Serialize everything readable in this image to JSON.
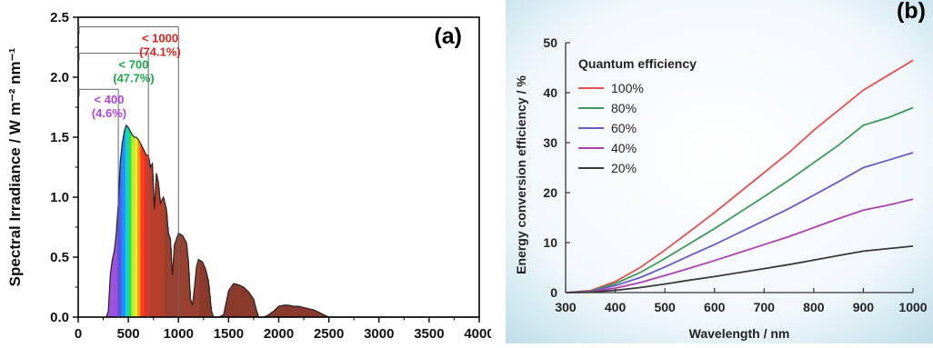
{
  "chart_data": [
    {
      "type": "area",
      "panel_label": "(a)",
      "ylabel": "Spectral Irradiance / W m⁻² nm⁻¹",
      "xlim": [
        0,
        4000
      ],
      "ylim": [
        0,
        2.5
      ],
      "x_ticks": [
        "0",
        "500",
        "1000",
        "1500",
        "2000",
        "2500",
        "3000",
        "3500",
        "4000"
      ],
      "y_ticks": [
        "0.0",
        "0.5",
        "1.0",
        "1.5",
        "2.0",
        "2.5"
      ],
      "series": [
        {
          "x": [
            280,
            300,
            320,
            340,
            360,
            380,
            400,
            420,
            440,
            460,
            480,
            500,
            520,
            540,
            560,
            580,
            600,
            620,
            650,
            680,
            700,
            720,
            740,
            760,
            780,
            800,
            820,
            850,
            880,
            900,
            920,
            940,
            960,
            980,
            1000,
            1040,
            1080,
            1100,
            1120,
            1140,
            1160,
            1180,
            1200,
            1240,
            1270,
            1300,
            1330,
            1350,
            1370,
            1400,
            1450,
            1500,
            1550,
            1600,
            1650,
            1700,
            1750,
            1780,
            1800,
            1850,
            1900,
            1950,
            2000,
            2050,
            2100,
            2150,
            2200,
            2250,
            2300,
            2350,
            2400,
            2450,
            2500,
            2600,
            2800,
            3000,
            3500,
            4000
          ],
          "y": [
            0.0,
            0.05,
            0.35,
            0.48,
            0.55,
            0.7,
            0.95,
            1.3,
            1.45,
            1.55,
            1.6,
            1.58,
            1.55,
            1.52,
            1.5,
            1.5,
            1.48,
            1.45,
            1.4,
            1.35,
            1.35,
            1.25,
            1.28,
            0.9,
            1.2,
            1.12,
            0.95,
            1.0,
            0.9,
            0.7,
            0.65,
            0.35,
            0.6,
            0.65,
            0.7,
            0.68,
            0.62,
            0.45,
            0.15,
            0.1,
            0.25,
            0.42,
            0.48,
            0.46,
            0.4,
            0.3,
            0.05,
            0.0,
            0.0,
            0.0,
            0.02,
            0.22,
            0.28,
            0.27,
            0.25,
            0.21,
            0.15,
            0.05,
            0.0,
            0.0,
            0.02,
            0.05,
            0.09,
            0.1,
            0.1,
            0.09,
            0.09,
            0.08,
            0.07,
            0.06,
            0.04,
            0.02,
            0.0,
            0.0,
            0.0,
            0.0,
            0.0,
            0.0
          ]
        }
      ],
      "annotations": [
        {
          "label": "< 400",
          "percent": "(4.6%)",
          "x_from": 0,
          "x_to": 400,
          "y": 1.9,
          "color": "#b044e0"
        },
        {
          "label": "< 700",
          "percent": "(47.7%)",
          "x_from": 0,
          "x_to": 700,
          "y": 2.2,
          "color": "#1aa84a"
        },
        {
          "label": "< 1000",
          "percent": "(74.1%)",
          "x_from": 0,
          "x_to": 1000,
          "y": 2.42,
          "color": "#e02020"
        }
      ]
    },
    {
      "type": "line",
      "panel_label": "(b)",
      "xlabel": "Wavelength / nm",
      "ylabel": "Energy conversion efficiency / %",
      "xlim": [
        300,
        1000
      ],
      "ylim": [
        0,
        50
      ],
      "x_ticks": [
        "300",
        "400",
        "500",
        "600",
        "700",
        "800",
        "900",
        "1000"
      ],
      "y_ticks": [
        "0",
        "10",
        "20",
        "30",
        "40",
        "50"
      ],
      "legend_title": "Quantum efficiency",
      "legend_position": "top-left",
      "x": [
        300,
        350,
        400,
        450,
        500,
        550,
        600,
        650,
        700,
        750,
        800,
        850,
        900,
        950,
        1000
      ],
      "series": [
        {
          "name": "100%",
          "color": "#e85050",
          "values": [
            0,
            0.4,
            2.2,
            5.0,
            8.5,
            12.2,
            16.0,
            20.0,
            24.0,
            28.0,
            32.5,
            36.5,
            40.5,
            43.5,
            46.5
          ]
        },
        {
          "name": "80%",
          "color": "#3a9a5a",
          "values": [
            0,
            0.3,
            1.8,
            4.0,
            6.8,
            9.8,
            12.8,
            16.0,
            19.2,
            22.5,
            26.0,
            29.5,
            33.5,
            35.0,
            37.0
          ]
        },
        {
          "name": "60%",
          "color": "#6a5ac8",
          "values": [
            0,
            0.2,
            1.4,
            3.0,
            5.1,
            7.4,
            9.6,
            12.0,
            14.4,
            16.8,
            19.5,
            22.2,
            25.0,
            26.5,
            28.0
          ]
        },
        {
          "name": "40%",
          "color": "#b040b0",
          "values": [
            0,
            0.15,
            0.9,
            2.0,
            3.4,
            4.9,
            6.4,
            8.0,
            9.6,
            11.2,
            13.0,
            14.8,
            16.5,
            17.5,
            18.7
          ]
        },
        {
          "name": "20%",
          "color": "#3a3a3a",
          "values": [
            0,
            0.08,
            0.45,
            1.0,
            1.7,
            2.5,
            3.2,
            4.0,
            4.8,
            5.6,
            6.5,
            7.4,
            8.3,
            8.8,
            9.3
          ]
        }
      ]
    }
  ]
}
